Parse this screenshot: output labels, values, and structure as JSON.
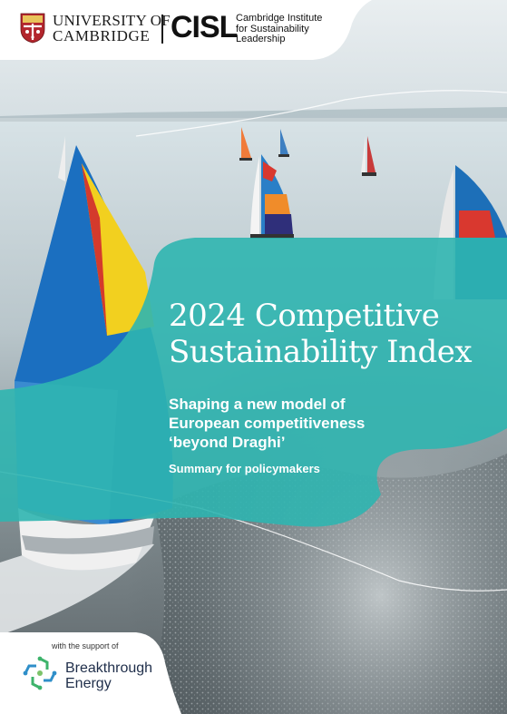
{
  "header": {
    "university_line1": "UNIVERSITY OF",
    "university_line2": "CAMBRIDGE",
    "cisl_acronym": "CISL",
    "cisl_name_line1": "Cambridge Institute",
    "cisl_name_line2": "for Sustainability",
    "cisl_name_line3": "Leadership"
  },
  "cover": {
    "title_line1": "2024 Competitive",
    "title_line2": "Sustainability Index",
    "subtitle_line1": "Shaping a new model of",
    "subtitle_line2": "European competitiveness",
    "subtitle_line3": "‘beyond Draghi’",
    "kicker": "Summary for policymakers"
  },
  "footer": {
    "support_label": "with the support of",
    "partner_line1": "Breakthrough",
    "partner_line2": "Energy"
  },
  "colors": {
    "teal_panel": "#2fb5b0",
    "sea_light": "#dfe9ec",
    "sea_dark": "#4a5458",
    "text_white": "#ffffff",
    "partner_green": "#3db36b",
    "partner_blue": "#2f8fc9"
  },
  "icons": {
    "university_logo": "cambridge-shield-icon",
    "partner_logo": "breakthrough-energy-icon"
  }
}
